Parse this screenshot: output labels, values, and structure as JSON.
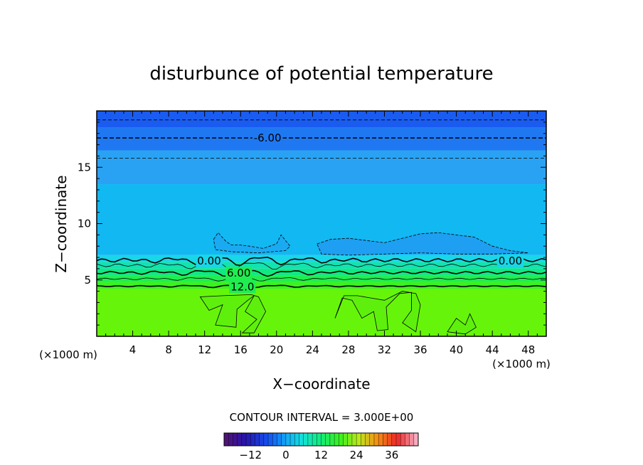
{
  "chart_data": {
    "type": "contour",
    "title": "disturbunce of potential temperature",
    "xlabel": "X−coordinate",
    "ylabel": "Z−coordinate",
    "x_unit_label_left": "(×1000 m)",
    "x_unit_label_right": "(×1000 m)",
    "xlim": [
      0,
      50
    ],
    "ylim": [
      0,
      20
    ],
    "x_ticks": [
      4,
      8,
      12,
      16,
      20,
      24,
      28,
      32,
      36,
      40,
      44,
      48
    ],
    "x_tick_labels": [
      "4",
      "8",
      "12",
      "16",
      "20",
      "24",
      "28",
      "32",
      "36",
      "40",
      "44",
      "48"
    ],
    "y_ticks": [
      5,
      10,
      15
    ],
    "y_tick_labels": [
      "5",
      "10",
      "15"
    ],
    "contour_interval_text": "CONTOUR INTERVAL = 3.000E+00",
    "contour_labels": [
      {
        "text": "-6.00",
        "x": 19.0,
        "z": 17.6,
        "dashed": true
      },
      {
        "text": "0.00",
        "x": 12.5,
        "z": 6.7,
        "dashed": false
      },
      {
        "text": "0.00",
        "x": 46.0,
        "z": 6.7,
        "dashed": false
      },
      {
        "text": "6.00",
        "x": 15.8,
        "z": 5.6,
        "dashed": false
      },
      {
        "text": "12.0",
        "x": 16.2,
        "z": 4.4,
        "dashed": false
      }
    ],
    "colorbar": {
      "range": [
        -21,
        45
      ],
      "ticks": [
        -12,
        0,
        12,
        24,
        36
      ],
      "tick_labels": [
        "−12",
        "0",
        "12",
        "24",
        "36"
      ]
    },
    "field_bands": [
      {
        "z_from": 18.5,
        "z_to": 20.0,
        "color": "#1a5cf0"
      },
      {
        "z_from": 16.5,
        "z_to": 18.5,
        "color": "#1f78f2"
      },
      {
        "z_from": 13.5,
        "z_to": 16.5,
        "color": "#2aa2f3"
      },
      {
        "z_from": 7.2,
        "z_to": 13.5,
        "color": "#12b8f2"
      },
      {
        "z_from": 6.6,
        "z_to": 7.2,
        "color": "#19d6e8"
      },
      {
        "z_from": 6.0,
        "z_to": 6.6,
        "color": "#12e3b0"
      },
      {
        "z_from": 5.4,
        "z_to": 6.0,
        "color": "#12e882"
      },
      {
        "z_from": 4.8,
        "z_to": 5.4,
        "color": "#20ee50"
      },
      {
        "z_from": 4.2,
        "z_to": 4.8,
        "color": "#3cf21c"
      },
      {
        "z_from": 0.0,
        "z_to": 4.2,
        "color": "#66f50a"
      }
    ]
  }
}
